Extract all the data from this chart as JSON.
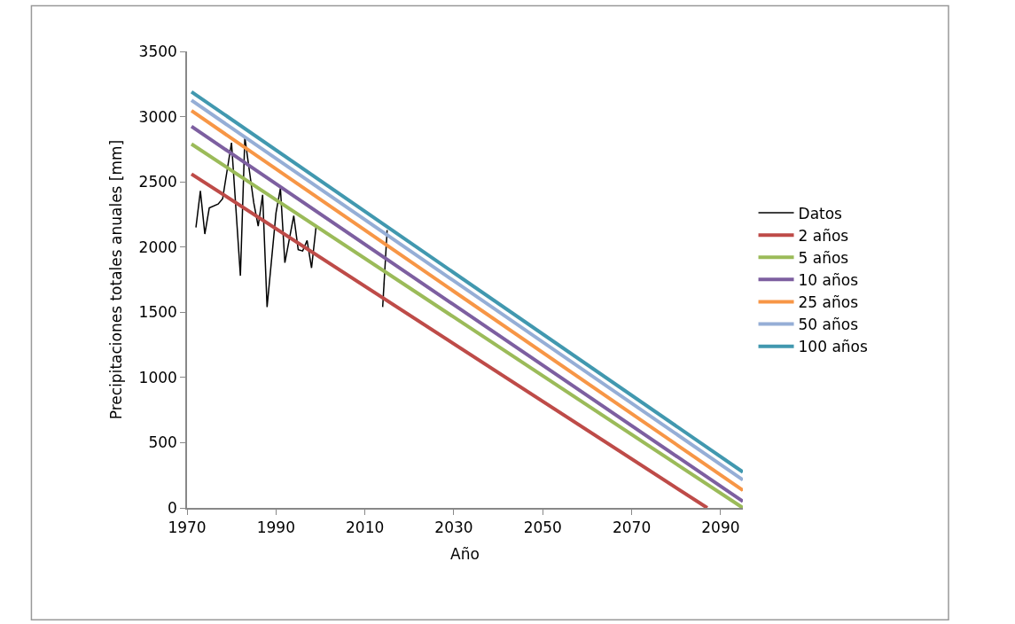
{
  "chart_data": {
    "type": "line",
    "xlabel": "Año",
    "ylabel": "Precipitaciones totales anuales [mm]",
    "xlim": [
      1970,
      2095
    ],
    "xticks": [
      1970,
      1990,
      2010,
      2030,
      2050,
      2070,
      2090
    ],
    "ylim": [
      0,
      3500
    ],
    "yticks": [
      0,
      500,
      1000,
      1500,
      2000,
      2500,
      3000,
      3500
    ],
    "legend": "right",
    "marker": "none",
    "line_style": "solid",
    "series": [
      {
        "name": "Datos",
        "color": "#000000",
        "x": [
          1972,
          1973,
          1974,
          1975,
          1977,
          1978,
          1980,
          1982,
          1983,
          1985,
          1986,
          1987,
          1988,
          1990,
          1991,
          1992,
          1994,
          1995,
          1996,
          1997,
          1998,
          1999,
          2006,
          2014,
          2015
        ],
        "values": [
          2150,
          2430,
          2100,
          2300,
          2330,
          2370,
          2800,
          1780,
          2840,
          2340,
          2160,
          2400,
          1540,
          2260,
          2450,
          1880,
          2240,
          1980,
          1970,
          2050,
          1840,
          2150,
          null,
          1540,
          2130
        ]
      },
      {
        "name": "2 años",
        "color": "#be4b48",
        "x": [
          1971,
          2087
        ],
        "values": [
          2560,
          0
        ]
      },
      {
        "name": "5 años",
        "color": "#9bbb59",
        "x": [
          1971,
          2095
        ],
        "values": [
          2790,
          0
        ]
      },
      {
        "name": "10 años",
        "color": "#7d5fa0",
        "x": [
          1971,
          2095
        ],
        "values": [
          2925,
          50
        ]
      },
      {
        "name": "25 años",
        "color": "#f79646",
        "x": [
          1971,
          2095
        ],
        "values": [
          3045,
          135
        ]
      },
      {
        "name": "50 años",
        "color": "#95aed6",
        "x": [
          1971,
          2095
        ],
        "values": [
          3125,
          215
        ]
      },
      {
        "name": "100 años",
        "color": "#4198af",
        "x": [
          1971,
          2095
        ],
        "values": [
          3190,
          275
        ]
      }
    ]
  }
}
